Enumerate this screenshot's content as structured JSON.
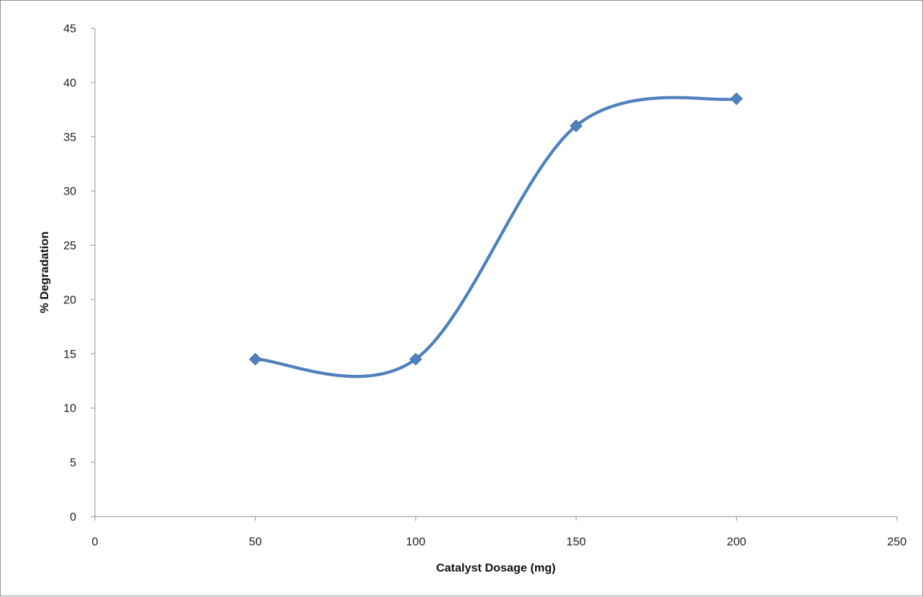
{
  "chart_data": {
    "type": "line",
    "title": "",
    "xlabel": "Catalyst Dosage (mg)",
    "ylabel": "% Degradation",
    "xlim": [
      0,
      250
    ],
    "ylim": [
      0,
      45
    ],
    "xticks": [
      0,
      50,
      100,
      150,
      200,
      250
    ],
    "yticks": [
      0,
      5,
      10,
      15,
      20,
      25,
      30,
      35,
      40,
      45
    ],
    "grid": false,
    "legend": "none",
    "smooth": true,
    "color": "#4F81BD",
    "series": [
      {
        "x": [
          50,
          100,
          150,
          200
        ],
        "y": [
          14.5,
          14.5,
          36,
          38.5
        ]
      }
    ]
  }
}
